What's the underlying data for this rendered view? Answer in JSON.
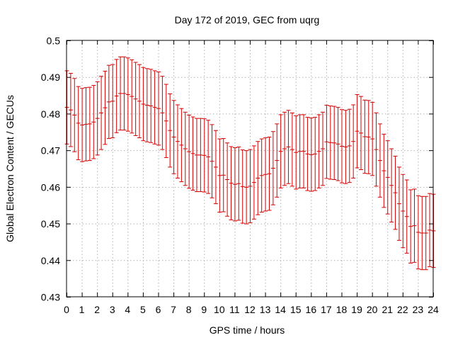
{
  "chart_data": {
    "type": "scatter",
    "title": "Day 172 of 2019, GEC from uqrg",
    "xlabel": "GPS time / hours",
    "ylabel": "Global Electron Content / GECUs",
    "xlim": [
      0,
      24
    ],
    "ylim": [
      0.43,
      0.5
    ],
    "x_ticks": [
      0,
      1,
      2,
      3,
      4,
      5,
      6,
      7,
      8,
      9,
      10,
      11,
      12,
      13,
      14,
      15,
      16,
      17,
      18,
      19,
      20,
      21,
      22,
      23,
      24
    ],
    "y_ticks": [
      "0.43",
      "0.44",
      "0.45",
      "0.46",
      "0.47",
      "0.48",
      "0.49",
      "0.5"
    ],
    "grid": true,
    "error_half_width": 0.01,
    "series": [
      {
        "name": "GEC",
        "color": "#d40000",
        "points": [
          [
            0.0,
            0.4818
          ],
          [
            0.25,
            0.4811
          ],
          [
            0.5,
            0.4797
          ],
          [
            0.75,
            0.4775
          ],
          [
            1.0,
            0.477
          ],
          [
            1.25,
            0.4772
          ],
          [
            1.5,
            0.4773
          ],
          [
            1.75,
            0.4778
          ],
          [
            2.0,
            0.4788
          ],
          [
            2.25,
            0.4803
          ],
          [
            2.5,
            0.4817
          ],
          [
            2.75,
            0.4833
          ],
          [
            3.0,
            0.4835
          ],
          [
            3.25,
            0.4849
          ],
          [
            3.5,
            0.4856
          ],
          [
            3.75,
            0.4856
          ],
          [
            4.0,
            0.4853
          ],
          [
            4.25,
            0.4848
          ],
          [
            4.5,
            0.4841
          ],
          [
            4.75,
            0.4835
          ],
          [
            5.0,
            0.4827
          ],
          [
            5.25,
            0.4824
          ],
          [
            5.5,
            0.4822
          ],
          [
            5.75,
            0.4818
          ],
          [
            6.0,
            0.4815
          ],
          [
            6.25,
            0.4803
          ],
          [
            6.5,
            0.4781
          ],
          [
            6.75,
            0.4755
          ],
          [
            7.0,
            0.4737
          ],
          [
            7.25,
            0.4725
          ],
          [
            7.5,
            0.4715
          ],
          [
            7.75,
            0.4705
          ],
          [
            8.0,
            0.4697
          ],
          [
            8.25,
            0.4692
          ],
          [
            8.5,
            0.4688
          ],
          [
            8.75,
            0.4688
          ],
          [
            9.0,
            0.4687
          ],
          [
            9.25,
            0.4683
          ],
          [
            9.5,
            0.4671
          ],
          [
            9.75,
            0.4655
          ],
          [
            10.0,
            0.4632
          ],
          [
            10.25,
            0.4633
          ],
          [
            10.5,
            0.4621
          ],
          [
            10.75,
            0.4611
          ],
          [
            11.0,
            0.4608
          ],
          [
            11.25,
            0.461
          ],
          [
            11.5,
            0.4602
          ],
          [
            11.75,
            0.46
          ],
          [
            12.0,
            0.4603
          ],
          [
            12.25,
            0.4613
          ],
          [
            12.5,
            0.4625
          ],
          [
            12.75,
            0.4632
          ],
          [
            13.0,
            0.4635
          ],
          [
            13.25,
            0.4637
          ],
          [
            13.5,
            0.4652
          ],
          [
            13.75,
            0.4673
          ],
          [
            14.0,
            0.4698
          ],
          [
            14.25,
            0.4705
          ],
          [
            14.5,
            0.471
          ],
          [
            14.75,
            0.4703
          ],
          [
            15.0,
            0.4695
          ],
          [
            15.25,
            0.4698
          ],
          [
            15.5,
            0.4698
          ],
          [
            15.75,
            0.4691
          ],
          [
            16.0,
            0.4689
          ],
          [
            16.25,
            0.4691
          ],
          [
            16.5,
            0.4698
          ],
          [
            16.75,
            0.4705
          ],
          [
            17.0,
            0.4724
          ],
          [
            17.25,
            0.4722
          ],
          [
            17.5,
            0.4721
          ],
          [
            17.75,
            0.4718
          ],
          [
            18.0,
            0.4712
          ],
          [
            18.25,
            0.471
          ],
          [
            18.5,
            0.4713
          ],
          [
            18.75,
            0.4725
          ],
          [
            19.0,
            0.4753
          ],
          [
            19.25,
            0.4748
          ],
          [
            19.5,
            0.4738
          ],
          [
            19.75,
            0.4737
          ],
          [
            20.0,
            0.4732
          ],
          [
            20.25,
            0.4703
          ],
          [
            20.5,
            0.4673
          ],
          [
            20.75,
            0.4645
          ],
          [
            21.0,
            0.4627
          ],
          [
            21.25,
            0.4605
          ],
          [
            21.5,
            0.4585
          ],
          [
            21.75,
            0.4555
          ],
          [
            22.0,
            0.4535
          ],
          [
            22.25,
            0.452
          ],
          [
            22.5,
            0.4493
          ],
          [
            22.75,
            0.4495
          ],
          [
            23.0,
            0.4477
          ],
          [
            23.25,
            0.4475
          ],
          [
            23.5,
            0.4475
          ],
          [
            23.75,
            0.4483
          ],
          [
            24.0,
            0.4481
          ]
        ]
      }
    ]
  }
}
